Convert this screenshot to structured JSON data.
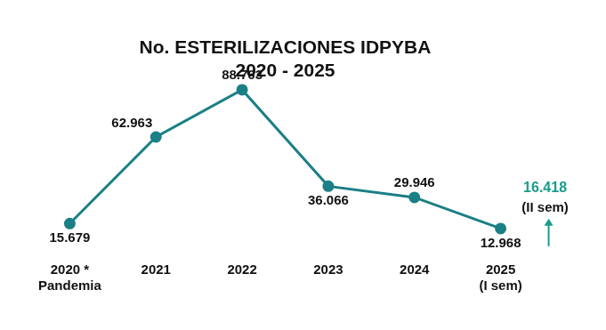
{
  "chart_data": {
    "type": "line",
    "title": [
      "No. ESTERILIZACIONES IDPYBA",
      "2020 - 2025"
    ],
    "categories": [
      [
        "2020 *",
        "Pandemia"
      ],
      "2021",
      "2022",
      "2023",
      "2024",
      [
        "2025",
        "(I sem)"
      ]
    ],
    "values": [
      15679,
      62963,
      88763,
      36066,
      29946,
      12968
    ],
    "value_labels": [
      "15.679",
      "62.963",
      "88.763",
      "36.066",
      "29.946",
      "12.968"
    ],
    "color": "#1b7f86",
    "marker": "circle",
    "line_style": "solid",
    "data_labels": true,
    "grid": false,
    "tick_labels": "x",
    "annotation": {
      "value": 16418,
      "label": "16.418",
      "note": "(II sem)",
      "color": "#1a9c8c"
    }
  }
}
